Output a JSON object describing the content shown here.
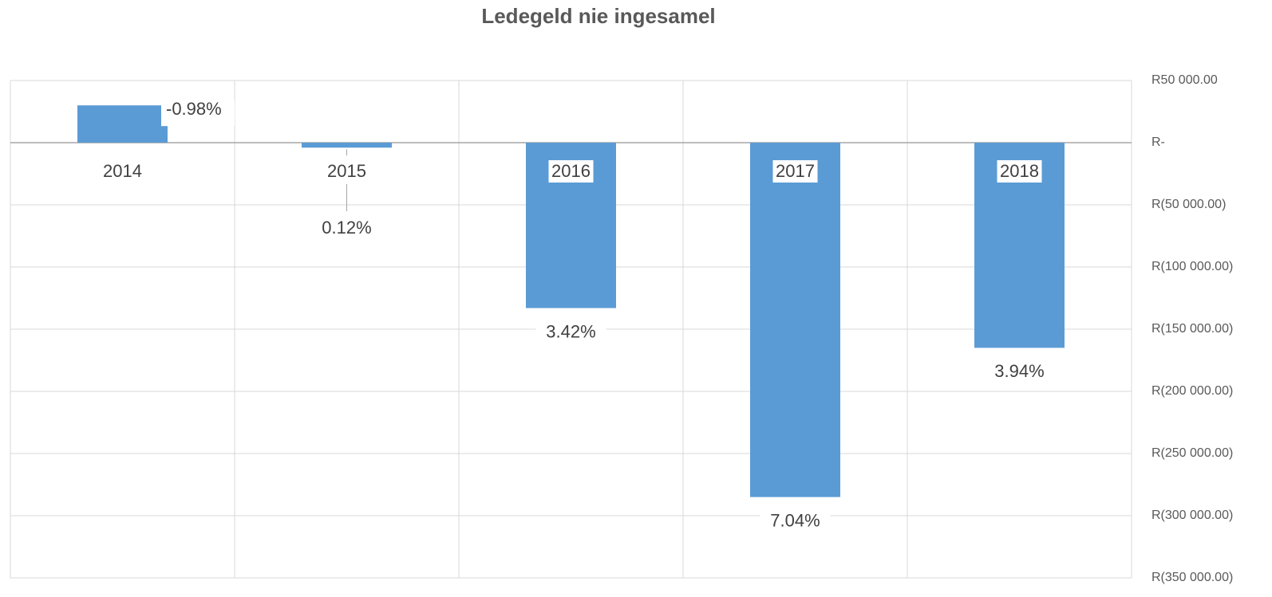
{
  "chart_data": {
    "type": "bar",
    "title": "Ledegeld nie ingesamel",
    "categories": [
      "2014",
      "2015",
      "2016",
      "2017",
      "2018"
    ],
    "values": [
      30000,
      -4000,
      -133000,
      -285000,
      -165000
    ],
    "annotations": [
      "-0.98%",
      "0.12%",
      "3.42%",
      "7.04%",
      "3.94%"
    ],
    "color": "#5b9bd5",
    "ylim": [
      -350000,
      50000
    ],
    "yticks": [
      {
        "value": 50000,
        "label": "R50 000.00"
      },
      {
        "value": 0,
        "label": "R-"
      },
      {
        "value": -50000,
        "label": "R(50 000.00)"
      },
      {
        "value": -100000,
        "label": "R(100 000.00)"
      },
      {
        "value": -150000,
        "label": "R(150 000.00)"
      },
      {
        "value": -200000,
        "label": "R(200 000.00)"
      },
      {
        "value": -250000,
        "label": "R(250 000.00)"
      },
      {
        "value": -300000,
        "label": "R(300 000.00)"
      },
      {
        "value": -350000,
        "label": "R(350 000.00)"
      }
    ],
    "grid": true,
    "y_axis_side": "right"
  }
}
